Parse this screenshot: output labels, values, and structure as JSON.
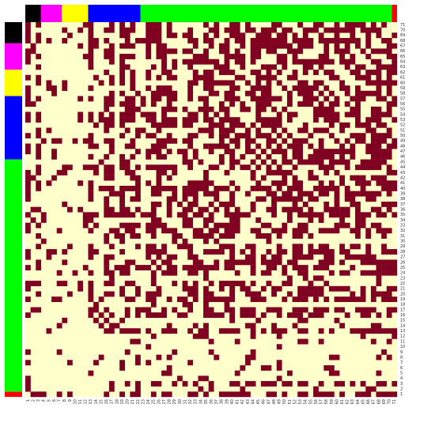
{
  "chart_data": {
    "type": "heatmap",
    "title": "",
    "xlabel": "",
    "ylabel": "",
    "x_tick_labels": [
      "1",
      "2",
      "3",
      "4",
      "5",
      "6",
      "7",
      "8",
      "9",
      "10",
      "11",
      "12",
      "13",
      "14",
      "15",
      "16",
      "17",
      "18",
      "19",
      "20",
      "21",
      "22",
      "23",
      "24",
      "25",
      "26",
      "27",
      "28",
      "29",
      "30",
      "31",
      "32",
      "33",
      "34",
      "35",
      "36",
      "37",
      "38",
      "39",
      "40",
      "41",
      "42",
      "43",
      "44",
      "45",
      "46",
      "47",
      "48",
      "49",
      "50",
      "51",
      "52",
      "53",
      "54",
      "55",
      "56",
      "57",
      "58",
      "59",
      "60",
      "61",
      "62",
      "63",
      "64",
      "65",
      "66",
      "67",
      "68",
      "69",
      "70",
      "71"
    ],
    "y_tick_labels": [
      "1",
      "2",
      "3",
      "4",
      "5",
      "6",
      "7",
      "8",
      "9",
      "10",
      "11",
      "12",
      "13",
      "14",
      "15",
      "16",
      "17",
      "18",
      "19",
      "20",
      "21",
      "22",
      "23",
      "24",
      "25",
      "26",
      "27",
      "28",
      "29",
      "30",
      "31",
      "32",
      "33",
      "34",
      "35",
      "36",
      "37",
      "38",
      "39",
      "40",
      "41",
      "42",
      "43",
      "44",
      "45",
      "46",
      "47",
      "48",
      "49",
      "50",
      "51",
      "52",
      "53",
      "54",
      "55",
      "56",
      "57",
      "58",
      "59",
      "60",
      "61",
      "62",
      "63",
      "64",
      "65",
      "66",
      "67",
      "68",
      "69",
      "70",
      "71"
    ],
    "value_colors": {
      "0": "#FFFFCC",
      "1": "#7F0020"
    },
    "group_colors": [
      "#000000",
      "#FF00FF",
      "#FFFF00",
      "#0000FF",
      "#00FF00",
      "#FF0000"
    ],
    "group_order": [
      1,
      1,
      2,
      2,
      2,
      2,
      3,
      3,
      3,
      3,
      3,
      4,
      4,
      4,
      4,
      4,
      4,
      4,
      4,
      4,
      4,
      4,
      4,
      4,
      4,
      4,
      4,
      4,
      4,
      4,
      4,
      4,
      4,
      4,
      4,
      4,
      4,
      4,
      4,
      4,
      4,
      4,
      4,
      4,
      4,
      4,
      4,
      4,
      4,
      4,
      4,
      4,
      4,
      4,
      4,
      4,
      4,
      4,
      4,
      4,
      4,
      4,
      4,
      4,
      4,
      4,
      4,
      4,
      4,
      4,
      5
    ],
    "column_groups": [
      {
        "group": 0,
        "from": 1,
        "to": 3
      },
      {
        "group": 1,
        "from": 4,
        "to": 7
      },
      {
        "group": 2,
        "from": 8,
        "to": 12
      },
      {
        "group": 3,
        "from": 13,
        "to": 22
      },
      {
        "group": 4,
        "from": 23,
        "to": 70
      },
      {
        "group": 5,
        "from": 71,
        "to": 71
      }
    ],
    "row_groups": [
      {
        "group": 5,
        "from": 1,
        "to": 1
      },
      {
        "group": 4,
        "from": 2,
        "to": 45
      },
      {
        "group": 3,
        "from": 46,
        "to": 57
      },
      {
        "group": 2,
        "from": 58,
        "to": 62
      },
      {
        "group": 1,
        "from": 63,
        "to": 67
      },
      {
        "group": 0,
        "from": 68,
        "to": 71
      }
    ],
    "core_nodes": [
      1,
      3,
      13,
      16,
      17,
      19,
      20,
      21,
      22,
      24,
      25,
      26,
      27,
      28,
      29,
      31,
      32,
      33,
      35,
      36,
      37,
      38,
      39,
      40,
      41,
      42,
      43,
      44,
      45,
      46,
      47,
      48,
      49,
      50,
      51,
      52,
      53,
      54,
      55,
      56,
      57,
      58,
      59,
      60,
      61,
      62,
      63,
      64,
      65,
      66,
      67,
      68,
      69,
      70,
      71
    ],
    "row_pattern_rows": [
      1,
      2,
      3,
      4,
      5,
      6,
      7,
      8,
      9,
      10,
      11,
      12,
      13,
      14,
      15,
      16,
      17,
      18,
      19,
      20,
      21,
      22,
      23,
      24,
      25,
      26,
      27,
      28,
      29,
      30,
      31,
      32,
      33,
      34,
      35,
      36,
      37,
      38,
      39,
      40,
      41,
      42,
      43,
      44,
      45,
      46,
      47,
      48,
      49,
      50,
      51,
      52,
      53,
      54,
      55,
      56,
      57,
      58,
      59,
      60,
      61,
      62,
      63,
      64,
      65,
      66,
      67,
      68,
      69,
      70,
      71
    ]
  }
}
